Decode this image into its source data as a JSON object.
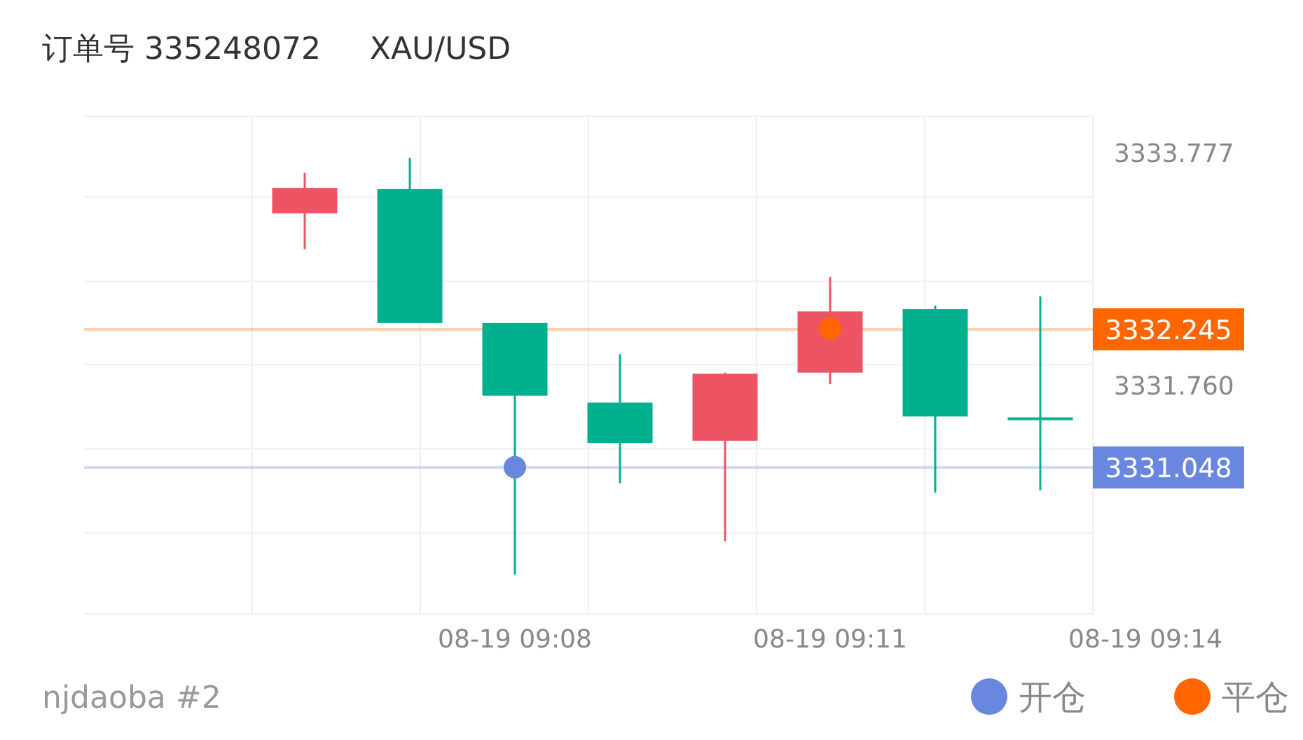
{
  "chart_data": {
    "type": "candlestick",
    "title": "订单号 335248072     XAU/USD",
    "annotations": [
      "njdaoba #2"
    ],
    "categories": [
      null,
      null,
      "08-19 09:08",
      null,
      null,
      "08-19 09:11",
      null,
      null,
      "08-19 09:14"
    ],
    "ylim": [
      3329.78,
      3334.09
    ],
    "yticks": [
      {
        "value": 3330.48,
        "label": null
      },
      {
        "value": 3331.21,
        "label": null
      },
      {
        "value": 3331.94,
        "label": null
      },
      {
        "value": 3332.66,
        "label": null
      },
      {
        "value": 3333.39,
        "label": null
      },
      3333.777,
      {
        "value": 3331.76,
        "label": "3331.760"
      }
    ],
    "grid": true,
    "legend": "bottom right",
    "ref_lines": [
      {
        "axis": "y",
        "value": 3332.245,
        "label": "3332.245",
        "color": "#ff6600"
      },
      {
        "axis": "y",
        "value": 3331.048,
        "label": "3331.048",
        "color": "#6a87e0"
      }
    ],
    "series": [
      {
        "colors": [
          "#ec5464",
          "#00b08f",
          "#00b08f",
          "#00b08f",
          "#ec5464",
          "#ec5464",
          "#00b08f",
          "#00b08f",
          null
        ],
        "ohlc": [
          [
            3333.25,
            3333.6,
            3332.94,
            3333.47
          ],
          [
            3333.46,
            3333.73,
            3332.3,
            3332.3
          ],
          [
            3332.3,
            3332.3,
            3330.12,
            3331.67
          ],
          [
            3331.61,
            3332.03,
            3330.91,
            3331.26
          ],
          [
            3331.28,
            3331.87,
            3330.41,
            3331.86
          ],
          [
            3331.87,
            3332.7,
            3331.77,
            3332.4
          ],
          [
            3332.42,
            3332.45,
            3330.83,
            3331.49
          ],
          [
            3331.47,
            3332.53,
            3330.85,
            3331.47
          ],
          null
        ]
      },
      {
        "type": "scatter",
        "name": "开仓",
        "color": "#6a87e0",
        "marker": "circle",
        "values": [
          null,
          null,
          3331.05,
          null,
          null,
          null,
          null,
          null,
          null
        ]
      },
      {
        "type": "scatter",
        "name": "平仓",
        "color": "#ff6600",
        "marker": "circle",
        "values": [
          null,
          null,
          null,
          null,
          null,
          3332.25,
          null,
          null,
          null
        ]
      }
    ]
  }
}
